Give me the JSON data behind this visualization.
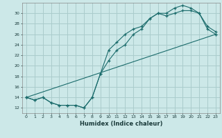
{
  "title": "",
  "xlabel": "Humidex (Indice chaleur)",
  "ylabel": "",
  "bg_color": "#cce8e8",
  "grid_color": "#aacccc",
  "line_color": "#1a6b6b",
  "xlim": [
    -0.5,
    23.5
  ],
  "ylim": [
    11,
    32
  ],
  "xticks": [
    0,
    1,
    2,
    3,
    4,
    5,
    6,
    7,
    8,
    9,
    10,
    11,
    12,
    13,
    14,
    15,
    16,
    17,
    18,
    19,
    20,
    21,
    22,
    23
  ],
  "yticks": [
    12,
    14,
    16,
    18,
    20,
    22,
    24,
    26,
    28,
    30
  ],
  "line1_x": [
    0,
    1,
    2,
    3,
    4,
    5,
    6,
    7,
    8,
    9,
    10,
    11,
    12,
    13,
    14,
    15,
    16,
    17,
    18,
    19,
    20,
    21,
    22,
    23
  ],
  "line1_y": [
    14,
    13.5,
    14,
    13,
    12.5,
    12.5,
    12.5,
    12,
    14,
    18.5,
    21,
    23,
    24,
    26,
    27,
    29,
    30,
    30,
    31,
    31.5,
    31,
    30,
    27,
    26
  ],
  "line2_x": [
    0,
    1,
    2,
    3,
    4,
    5,
    6,
    7,
    8,
    9,
    10,
    11,
    12,
    13,
    14,
    15,
    16,
    17,
    18,
    19,
    20,
    21,
    22,
    23
  ],
  "line2_y": [
    14,
    13.5,
    14,
    13,
    12.5,
    12.5,
    12.5,
    12,
    14,
    18.5,
    23,
    24.5,
    26,
    27,
    27.5,
    29,
    30,
    29.5,
    30,
    30.5,
    30.5,
    30,
    27.5,
    26.5
  ],
  "line3_x": [
    0,
    23
  ],
  "line3_y": [
    14,
    26
  ]
}
